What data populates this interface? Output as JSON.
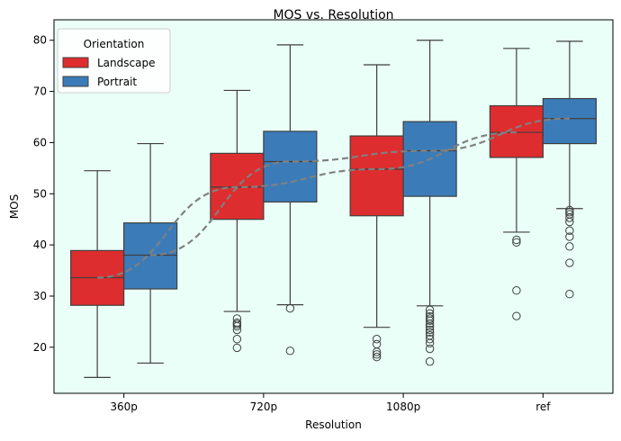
{
  "chart_data": {
    "type": "box",
    "title": "MOS vs. Resolution",
    "xlabel": "Resolution",
    "ylabel": "MOS",
    "categories": [
      "360p",
      "720p",
      "1080p",
      "ref"
    ],
    "ylim": [
      11,
      84
    ],
    "yticks": [
      20,
      30,
      40,
      50,
      60,
      70,
      80
    ],
    "grid": false,
    "background_color": "#eafff8",
    "legend": {
      "title": "Orientation",
      "position": "top-left"
    },
    "series": [
      {
        "name": "Landscape",
        "color": "#de2d2f",
        "boxes": [
          {
            "category": "360p",
            "whisker_low": 14.1,
            "q1": 28.2,
            "median": 33.6,
            "q3": 38.9,
            "whisker_high": 54.5,
            "outliers": []
          },
          {
            "category": "720p",
            "whisker_low": 27.0,
            "q1": 45.0,
            "median": 51.3,
            "q3": 57.9,
            "whisker_high": 70.2,
            "outliers": [
              25.6,
              24.8,
              24.5,
              24.1,
              23.4,
              21.6,
              19.9
            ]
          },
          {
            "category": "1080p",
            "whisker_low": 23.9,
            "q1": 45.7,
            "median": 54.8,
            "q3": 61.3,
            "whisker_high": 75.2,
            "outliers": [
              21.6,
              20.6,
              19.1,
              18.6,
              18.1
            ]
          },
          {
            "category": "ref",
            "whisker_low": 42.5,
            "q1": 57.1,
            "median": 62.0,
            "q3": 67.2,
            "whisker_high": 78.4,
            "outliers": [
              41.0,
              40.5,
              31.1,
              26.1
            ]
          }
        ]
      },
      {
        "name": "Portrait",
        "color": "#3b7cb8",
        "boxes": [
          {
            "category": "360p",
            "whisker_low": 16.9,
            "q1": 31.4,
            "median": 38.0,
            "q3": 44.3,
            "whisker_high": 59.8,
            "outliers": []
          },
          {
            "category": "720p",
            "whisker_low": 28.3,
            "q1": 48.4,
            "median": 56.3,
            "q3": 62.2,
            "whisker_high": 79.1,
            "outliers": [
              27.6,
              19.3
            ]
          },
          {
            "category": "1080p",
            "whisker_low": 28.1,
            "q1": 49.5,
            "median": 58.4,
            "q3": 64.1,
            "whisker_high": 80.0,
            "outliers": [
              27.3,
              26.6,
              26.0,
              25.6,
              25.2,
              24.6,
              24.0,
              23.4,
              22.9,
              22.3,
              21.6,
              20.8,
              19.7,
              17.2
            ]
          },
          {
            "category": "ref",
            "whisker_low": 47.1,
            "q1": 59.8,
            "median": 64.7,
            "q3": 68.6,
            "whisker_high": 79.8,
            "outliers": [
              46.8,
              46.4,
              46.0,
              45.3,
              44.5,
              42.8,
              41.6,
              39.7,
              36.5,
              30.4
            ]
          }
        ]
      }
    ],
    "trend_lines": {
      "style": "dashed",
      "color": "#808080",
      "series": [
        {
          "series": "Landscape",
          "values": [
            33.6,
            51.3,
            54.8,
            62.0
          ]
        },
        {
          "series": "Portrait",
          "values": [
            38.0,
            56.3,
            58.4,
            64.7
          ]
        }
      ]
    }
  }
}
